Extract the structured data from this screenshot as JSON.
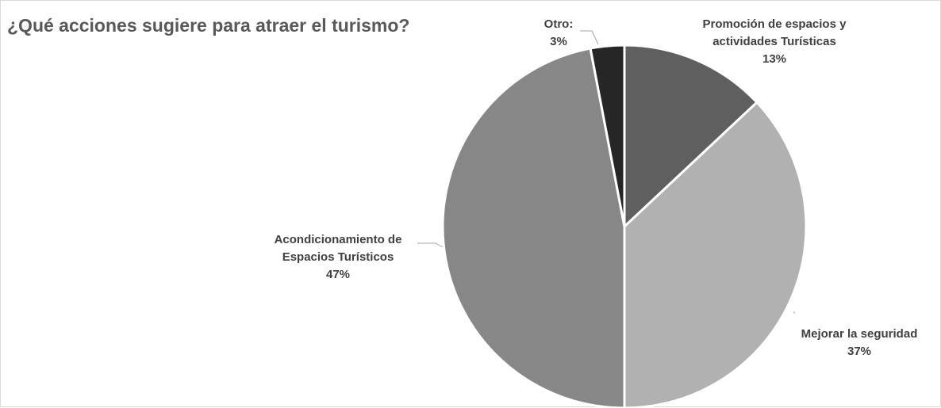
{
  "chart_data": {
    "type": "pie",
    "title": "¿Qué acciones sugiere para atraer el turismo?",
    "slices": [
      {
        "label": [
          "Promoción de espacios y",
          "actividades Turísticas"
        ],
        "percent_label": "13%",
        "value": 13,
        "color": "#5f5f5f"
      },
      {
        "label": [
          "Mejorar la seguridad"
        ],
        "percent_label": "37%",
        "value": 37,
        "color": "#b1b1b1"
      },
      {
        "label": [
          "Acondicionamiento de",
          "Espacios Turísticos"
        ],
        "percent_label": "47%",
        "value": 47,
        "color": "#878787"
      },
      {
        "label": [
          "Otro:"
        ],
        "percent_label": "3%",
        "value": 3,
        "color": "#262626"
      }
    ],
    "legend": "none",
    "data_labels": "outside with leader lines"
  }
}
